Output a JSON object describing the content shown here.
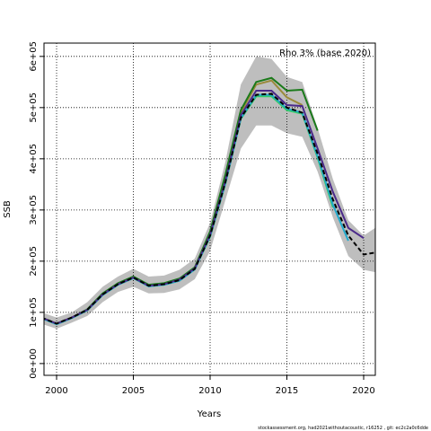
{
  "chart_data": {
    "type": "line",
    "annotation": "Rho 3% (base 2020)",
    "x_label": "Years",
    "y_label": "SSB",
    "footer": "stockassessment.org, had2021withoutacoustic, r16252 , git: ec2c2a0c6dde",
    "x": [
      1999,
      2000,
      2001,
      2002,
      2003,
      2004,
      2005,
      2006,
      2007,
      2008,
      2009,
      2010,
      2011,
      2012,
      2013,
      2014,
      2015,
      2016,
      2017,
      2018,
      2019,
      2020,
      2021
    ],
    "band": {
      "color": "#bebebe",
      "upper": [
        100000,
        90000,
        100000,
        120000,
        150000,
        170000,
        185000,
        170000,
        172000,
        183000,
        205000,
        275000,
        395000,
        545000,
        600000,
        595000,
        560000,
        550000,
        460000,
        360000,
        280000,
        250000,
        270000
      ],
      "lower": [
        78000,
        68000,
        80000,
        93000,
        120000,
        140000,
        150000,
        137000,
        138000,
        145000,
        165000,
        220000,
        320000,
        420000,
        465000,
        465000,
        450000,
        443000,
        375000,
        285000,
        210000,
        183000,
        177000
      ]
    },
    "series": [
      {
        "color": "#000000",
        "dash": true,
        "values": [
          90000,
          78000,
          90000,
          105000,
          135000,
          155000,
          168000,
          152000,
          155000,
          163000,
          185000,
          250000,
          355000,
          480000,
          525000,
          527000,
          500000,
          490000,
          410000,
          320000,
          250000,
          213000,
          218000
        ]
      },
      {
        "color": "#9a8a3a",
        "values": [
          90000,
          78000,
          90000,
          105000,
          136000,
          156000,
          169000,
          153000,
          156000,
          165000,
          187000,
          255000,
          365000,
          490000,
          545000,
          553000,
          520000,
          505000,
          null,
          null,
          null,
          null,
          null
        ]
      },
      {
        "color": "#1a7a1a",
        "values": [
          90000,
          78000,
          90000,
          106000,
          137000,
          157000,
          170000,
          154000,
          157000,
          166000,
          188000,
          258000,
          370000,
          495000,
          550000,
          558000,
          533000,
          535000,
          455000,
          null,
          null,
          null,
          null
        ]
      },
      {
        "color": "#33cc66",
        "values": [
          89000,
          77000,
          89000,
          104000,
          134000,
          154000,
          167000,
          151000,
          154000,
          162000,
          184000,
          248000,
          352000,
          478000,
          522000,
          522000,
          495000,
          488000,
          402000,
          305000,
          null,
          null,
          null
        ]
      },
      {
        "color": "#22aacc",
        "values": [
          89000,
          77000,
          89000,
          104000,
          134000,
          154000,
          167000,
          151000,
          154000,
          162000,
          184000,
          249000,
          353000,
          479000,
          525000,
          525000,
          498000,
          490000,
          405000,
          310000,
          240000,
          null,
          null
        ]
      },
      {
        "color": "#4b2a8a",
        "values": [
          90000,
          78000,
          90000,
          105000,
          135000,
          155000,
          168000,
          152000,
          155000,
          164000,
          186000,
          252000,
          358000,
          485000,
          533000,
          533000,
          505000,
          503000,
          420000,
          335000,
          265000,
          245000,
          null
        ]
      }
    ],
    "xlim": [
      1999.18,
      2020.76
    ],
    "xticks": [
      2000,
      2005,
      2010,
      2015,
      2020
    ],
    "ylim": [
      -23000,
      626000
    ],
    "yticks": [
      {
        "value": 0,
        "label": "0e+00"
      },
      {
        "value": 100000,
        "label": "1e+05"
      },
      {
        "value": 200000,
        "label": "2e+05"
      },
      {
        "value": 300000,
        "label": "3e+05"
      },
      {
        "value": 400000,
        "label": "4e+05"
      },
      {
        "value": 500000,
        "label": "5e+05"
      },
      {
        "value": 600000,
        "label": "6e+05"
      }
    ],
    "grid": true
  }
}
